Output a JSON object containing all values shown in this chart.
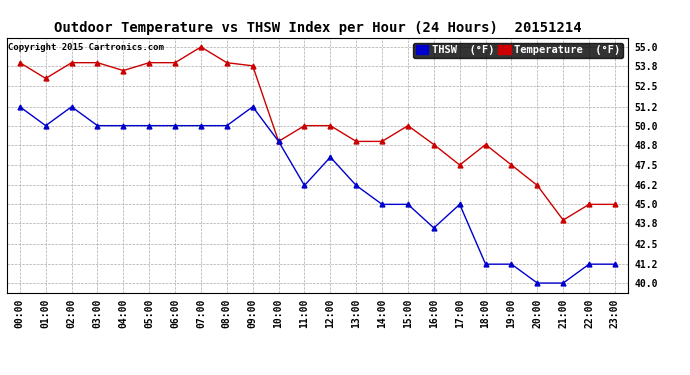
{
  "title": "Outdoor Temperature vs THSW Index per Hour (24 Hours)  20151214",
  "copyright": "Copyright 2015 Cartronics.com",
  "ylim": [
    39.4,
    55.6
  ],
  "yticks": [
    40.0,
    41.2,
    42.5,
    43.8,
    45.0,
    46.2,
    47.5,
    48.8,
    50.0,
    51.2,
    52.5,
    53.8,
    55.0
  ],
  "hours": [
    "00:00",
    "01:00",
    "02:00",
    "03:00",
    "04:00",
    "05:00",
    "06:00",
    "07:00",
    "08:00",
    "09:00",
    "10:00",
    "11:00",
    "12:00",
    "13:00",
    "14:00",
    "15:00",
    "16:00",
    "17:00",
    "18:00",
    "19:00",
    "20:00",
    "21:00",
    "22:00",
    "23:00"
  ],
  "temperature": [
    54.0,
    53.0,
    54.0,
    54.0,
    53.5,
    54.0,
    54.0,
    55.0,
    54.0,
    53.8,
    49.0,
    50.0,
    50.0,
    49.0,
    49.0,
    50.0,
    48.8,
    47.5,
    48.8,
    47.5,
    46.2,
    44.0,
    45.0,
    45.0
  ],
  "thsw": [
    51.2,
    50.0,
    51.2,
    50.0,
    50.0,
    50.0,
    50.0,
    50.0,
    50.0,
    51.2,
    49.0,
    46.2,
    48.0,
    46.2,
    45.0,
    45.0,
    43.5,
    45.0,
    41.2,
    41.2,
    40.0,
    40.0,
    41.2,
    41.2
  ],
  "temp_color": "#cc0000",
  "thsw_color": "#0000cc",
  "marker": "^",
  "marker_size": 3.5,
  "bg_color": "#ffffff",
  "grid_color": "#aaaaaa",
  "title_fontsize": 10,
  "copyright_fontsize": 6.5,
  "tick_fontsize": 7,
  "legend_thsw_label": "THSW  (°F)",
  "legend_temp_label": "Temperature  (°F)",
  "legend_fontsize": 7.5
}
